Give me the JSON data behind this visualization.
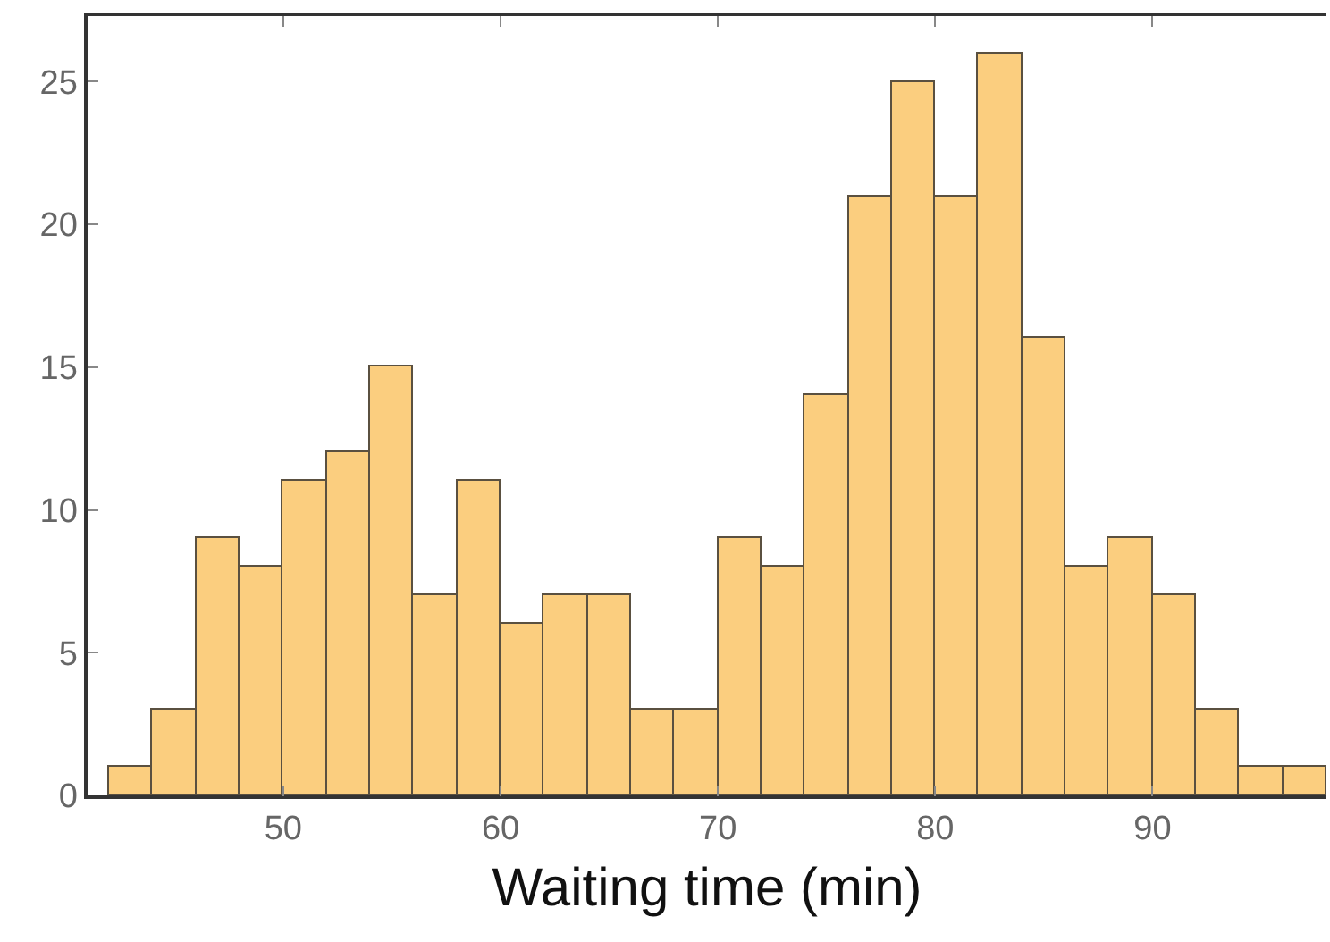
{
  "chart_data": {
    "type": "histogram",
    "xlabel": "Waiting time (min)",
    "bins": [
      42,
      44,
      46,
      48,
      50,
      52,
      54,
      56,
      58,
      60,
      62,
      64,
      66,
      68,
      70,
      72,
      74,
      76,
      78,
      80,
      82,
      84,
      86,
      88,
      90,
      92,
      94,
      96,
      98
    ],
    "values": [
      1,
      3,
      9,
      8,
      11,
      12,
      15,
      7,
      11,
      6,
      7,
      7,
      3,
      3,
      9,
      8,
      14,
      21,
      25,
      21,
      26,
      16,
      8,
      9,
      7,
      3,
      1,
      1
    ],
    "color": "#fbce7f",
    "xlim": [
      41,
      98
    ],
    "xticks": [
      50,
      60,
      70,
      80,
      90
    ],
    "ylim": [
      0,
      27.3
    ],
    "yticks": [
      0,
      5,
      10,
      15,
      20,
      25
    ],
    "grid": false,
    "legend": false
  }
}
